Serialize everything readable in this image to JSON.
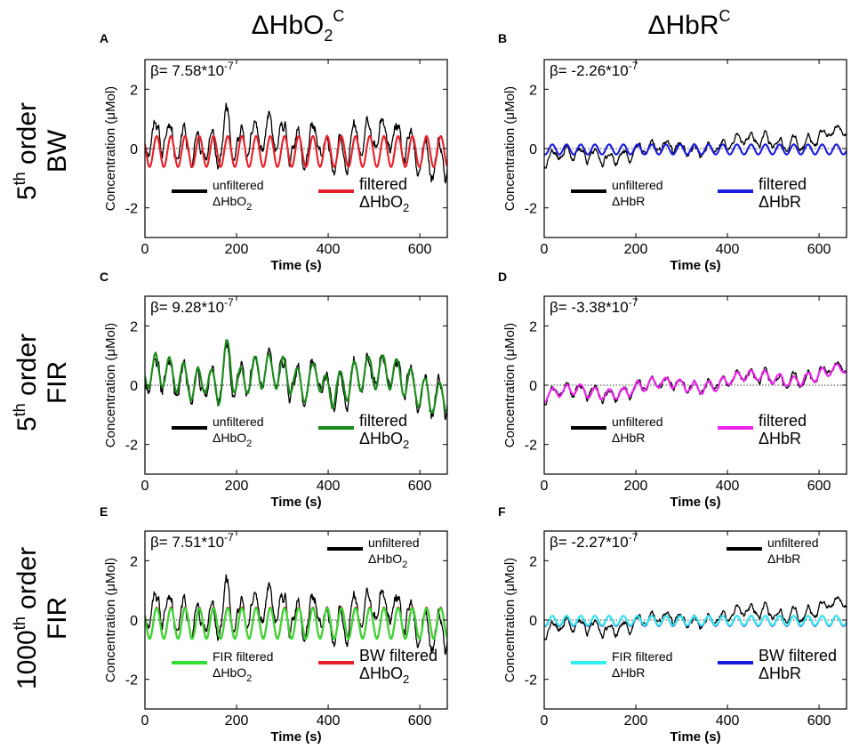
{
  "figure": {
    "column_titles": [
      {
        "main": "ΔHbO",
        "sub": "2",
        "sup": "C"
      },
      {
        "main": "ΔHbR",
        "sub": "",
        "sup": "C"
      }
    ],
    "row_titles": [
      {
        "line1_num": "5",
        "line1_sup": "th",
        "line1_rest": " order",
        "line2": "BW"
      },
      {
        "line1_num": "5",
        "line1_sup": "th",
        "line1_rest": " order",
        "line2": "FIR"
      },
      {
        "line1_num": "1000",
        "line1_sup": "th",
        "line1_rest": " order",
        "line2": "FIR"
      }
    ],
    "axis": {
      "xlabel": "Time (s)",
      "ylabel": "Concentration (μMol)",
      "xticks": [
        "0",
        "200",
        "400",
        "600"
      ],
      "yticks": [
        "2",
        "0",
        "-2"
      ]
    }
  },
  "colors": {
    "unfiltered": "#000000",
    "bw_red": "#e8202a",
    "bw_blue": "#1a1adf",
    "fir_green": "#1a8a1a",
    "fir_magenta": "#ee22ee",
    "fir1000_green": "#33dd33",
    "fir1000_cyan": "#33eeee"
  },
  "chart_data": [
    {
      "panel": "A",
      "type": "line",
      "signal": "hbo",
      "beta": "β= 7.58*10",
      "beta_exp": "-7",
      "xlim": [
        0,
        660
      ],
      "ylim": [
        -3,
        3
      ],
      "series": [
        {
          "name": "unfiltered ΔHbO2",
          "color": "#000000",
          "role": "unfiltered"
        },
        {
          "name": "filtered ΔHbO2",
          "color": "#e8202a",
          "role": "bw"
        }
      ],
      "legend": [
        {
          "line1": "unfiltered",
          "line2": "ΔHbO",
          "sub": "2",
          "color": "#000000",
          "size": "small",
          "pos": "bottom-left"
        },
        {
          "line1": "filtered",
          "line2": "ΔHbO",
          "sub": "2",
          "color": "#e8202a",
          "size": "big",
          "pos": "bottom-right"
        }
      ]
    },
    {
      "panel": "B",
      "type": "line",
      "signal": "hbr",
      "beta": "β= -2.26*10",
      "beta_exp": "-7",
      "xlim": [
        0,
        660
      ],
      "ylim": [
        -3,
        3
      ],
      "series": [
        {
          "name": "unfiltered ΔHbR",
          "color": "#000000",
          "role": "unfiltered"
        },
        {
          "name": "filtered ΔHbR",
          "color": "#1a1adf",
          "role": "bw"
        }
      ],
      "legend": [
        {
          "line1": "unfiltered",
          "line2": "ΔHbR",
          "sub": "",
          "color": "#000000",
          "size": "small",
          "pos": "bottom-left"
        },
        {
          "line1": "filtered",
          "line2": "ΔHbR",
          "sub": "",
          "color": "#1a1adf",
          "size": "big",
          "pos": "bottom-right"
        }
      ]
    },
    {
      "panel": "C",
      "type": "line",
      "signal": "hbo",
      "beta": "β= 9.28*10",
      "beta_exp": "-7",
      "xlim": [
        0,
        660
      ],
      "ylim": [
        -3,
        3
      ],
      "series": [
        {
          "name": "unfiltered ΔHbO2",
          "color": "#000000",
          "role": "unfiltered"
        },
        {
          "name": "filtered ΔHbO2",
          "color": "#1a8a1a",
          "role": "fir5"
        }
      ],
      "legend": [
        {
          "line1": "unfiltered",
          "line2": "ΔHbO",
          "sub": "2",
          "color": "#000000",
          "size": "small",
          "pos": "bottom-left"
        },
        {
          "line1": "filtered",
          "line2": "ΔHbO",
          "sub": "2",
          "color": "#1a8a1a",
          "size": "big",
          "pos": "bottom-right"
        }
      ]
    },
    {
      "panel": "D",
      "type": "line",
      "signal": "hbr",
      "beta": "β= -3.38*10",
      "beta_exp": "-7",
      "xlim": [
        0,
        660
      ],
      "ylim": [
        -3,
        3
      ],
      "series": [
        {
          "name": "unfiltered ΔHbR",
          "color": "#000000",
          "role": "unfiltered"
        },
        {
          "name": "filtered ΔHbR",
          "color": "#ee22ee",
          "role": "fir5"
        }
      ],
      "legend": [
        {
          "line1": "unfiltered",
          "line2": "ΔHbR",
          "sub": "",
          "color": "#000000",
          "size": "small",
          "pos": "bottom-left"
        },
        {
          "line1": "filtered",
          "line2": "ΔHbR",
          "sub": "",
          "color": "#ee22ee",
          "size": "big",
          "pos": "bottom-right"
        }
      ]
    },
    {
      "panel": "E",
      "type": "line",
      "signal": "hbo",
      "beta": "β= 7.51*10",
      "beta_exp": "-7",
      "xlim": [
        0,
        660
      ],
      "ylim": [
        -3,
        3
      ],
      "series": [
        {
          "name": "unfiltered ΔHbO2",
          "color": "#000000",
          "role": "unfiltered"
        },
        {
          "name": "BW filtered ΔHbO2",
          "color": "#e8202a",
          "role": "bw"
        },
        {
          "name": "FIR filtered ΔHbO2",
          "color": "#33dd33",
          "role": "fir1000"
        }
      ],
      "legend": [
        {
          "line1": "unfiltered",
          "line2": "ΔHbO",
          "sub": "2",
          "color": "#000000",
          "size": "small",
          "pos": "top-right"
        },
        {
          "line1": "FIR filtered",
          "line2": "ΔHbO",
          "sub": "2",
          "color": "#33dd33",
          "size": "small",
          "pos": "bottom-left"
        },
        {
          "line1": "BW filtered",
          "line2": "ΔHbO",
          "sub": "2",
          "color": "#e8202a",
          "size": "big",
          "pos": "bottom-right"
        }
      ]
    },
    {
      "panel": "F",
      "type": "line",
      "signal": "hbr",
      "beta": "β= -2.27*10",
      "beta_exp": "-7",
      "xlim": [
        0,
        660
      ],
      "ylim": [
        -3,
        3
      ],
      "series": [
        {
          "name": "unfiltered ΔHbR",
          "color": "#000000",
          "role": "unfiltered"
        },
        {
          "name": "BW filtered ΔHbR",
          "color": "#1a1adf",
          "role": "bw"
        },
        {
          "name": "FIR filtered ΔHbR",
          "color": "#33eeee",
          "role": "fir1000"
        }
      ],
      "legend": [
        {
          "line1": "unfiltered",
          "line2": "ΔHbR",
          "sub": "",
          "color": "#000000",
          "size": "small",
          "pos": "top-right"
        },
        {
          "line1": "FIR filtered",
          "line2": "ΔHbR",
          "sub": "",
          "color": "#33eeee",
          "size": "small",
          "pos": "bottom-left"
        },
        {
          "line1": "BW filtered",
          "line2": "ΔHbR",
          "sub": "",
          "color": "#1a1adf",
          "size": "big",
          "pos": "bottom-right"
        }
      ]
    }
  ]
}
